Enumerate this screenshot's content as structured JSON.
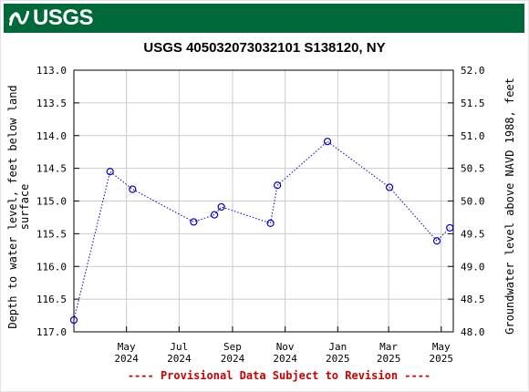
{
  "banner": {
    "logo_text": "USGS",
    "color": "#00693a"
  },
  "chart_data": {
    "type": "scatter",
    "title": "USGS 405032073032101 S138120, NY",
    "ylabel_left_lines": [
      "Depth to water level, feet below land",
      "surface"
    ],
    "ylabel_right": "Groundwater level above NAVD 1988, feet",
    "left_axis": {
      "min": 113.0,
      "max": 117.0,
      "inverted": true,
      "ticks": [
        "113.0",
        "113.5",
        "114.0",
        "114.5",
        "115.0",
        "115.5",
        "116.0",
        "116.5",
        "117.0"
      ]
    },
    "right_axis": {
      "min": 48.0,
      "max": 52.0,
      "ticks": [
        "52.0",
        "51.5",
        "51.0",
        "50.5",
        "50.0",
        "49.5",
        "49.0",
        "48.5",
        "48.0"
      ]
    },
    "x_range": [
      "2024-03-01",
      "2025-05-15"
    ],
    "x_ticks": [
      {
        "date": "2024-05-01",
        "month": "May",
        "year": "2024"
      },
      {
        "date": "2024-07-01",
        "month": "Jul",
        "year": "2024"
      },
      {
        "date": "2024-09-01",
        "month": "Sep",
        "year": "2024"
      },
      {
        "date": "2024-11-01",
        "month": "Nov",
        "year": "2024"
      },
      {
        "date": "2025-01-01",
        "month": "Jan",
        "year": "2025"
      },
      {
        "date": "2025-03-01",
        "month": "Mar",
        "year": "2025"
      },
      {
        "date": "2025-05-01",
        "month": "May",
        "year": "2025"
      }
    ],
    "grid": true,
    "series": [
      {
        "color": "#0000cc",
        "line_style": "dotted",
        "marker": "open-circle",
        "points": [
          {
            "date": "2024-03-01",
            "depth": 116.82
          },
          {
            "date": "2024-04-12",
            "depth": 114.55
          },
          {
            "date": "2024-05-08",
            "depth": 114.82
          },
          {
            "date": "2024-07-18",
            "depth": 115.32
          },
          {
            "date": "2024-08-11",
            "depth": 115.21
          },
          {
            "date": "2024-08-19",
            "depth": 115.09
          },
          {
            "date": "2024-10-15",
            "depth": 115.34
          },
          {
            "date": "2024-10-23",
            "depth": 114.76
          },
          {
            "date": "2024-12-20",
            "depth": 114.09
          },
          {
            "date": "2025-03-02",
            "depth": 114.79
          },
          {
            "date": "2025-04-26",
            "depth": 115.61
          },
          {
            "date": "2025-05-11",
            "depth": 115.41
          }
        ]
      }
    ]
  },
  "footer": {
    "provisional_text": "---- Provisional Data Subject to Revision ----"
  }
}
